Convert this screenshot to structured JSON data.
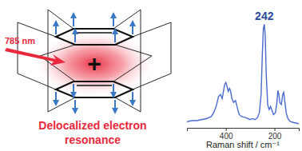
{
  "chart_data": {
    "type": "line",
    "x_label": "Raman shift / cm⁻¹",
    "color": "#4a6ad0",
    "x": [
      560,
      540,
      520,
      500,
      480,
      460,
      450,
      440,
      430,
      422,
      415,
      410,
      405,
      400,
      395,
      390,
      385,
      381,
      375,
      368,
      360,
      352,
      345,
      335,
      320,
      300,
      290,
      280,
      270,
      262,
      255,
      250,
      246,
      242,
      238,
      234,
      228,
      222,
      216,
      210,
      204,
      196,
      190,
      186,
      182,
      178,
      172,
      166,
      162,
      158,
      152,
      145,
      135,
      120,
      100
    ],
    "values": [
      3,
      4,
      4,
      5,
      6,
      8,
      12,
      18,
      28,
      30,
      26,
      33,
      40,
      42,
      38,
      33,
      36,
      34,
      26,
      22,
      24,
      16,
      10,
      8,
      7,
      5,
      6,
      5,
      7,
      12,
      30,
      70,
      95,
      100,
      88,
      50,
      20,
      15,
      18,
      14,
      10,
      12,
      22,
      34,
      30,
      22,
      20,
      30,
      32,
      24,
      12,
      6,
      3,
      2,
      1
    ],
    "xlim": [
      560,
      100
    ],
    "xticks": [
      400,
      200
    ],
    "ylim": [
      0,
      105
    ],
    "tick_labels": "x",
    "annotations": [
      {
        "text": "242",
        "x": 242,
        "y": 100,
        "color": "#2b4a9e"
      }
    ]
  },
  "diagram": {
    "laser_label": "785 nm",
    "charge": "+",
    "caption": [
      "Delocalized electron",
      "resonance"
    ]
  }
}
